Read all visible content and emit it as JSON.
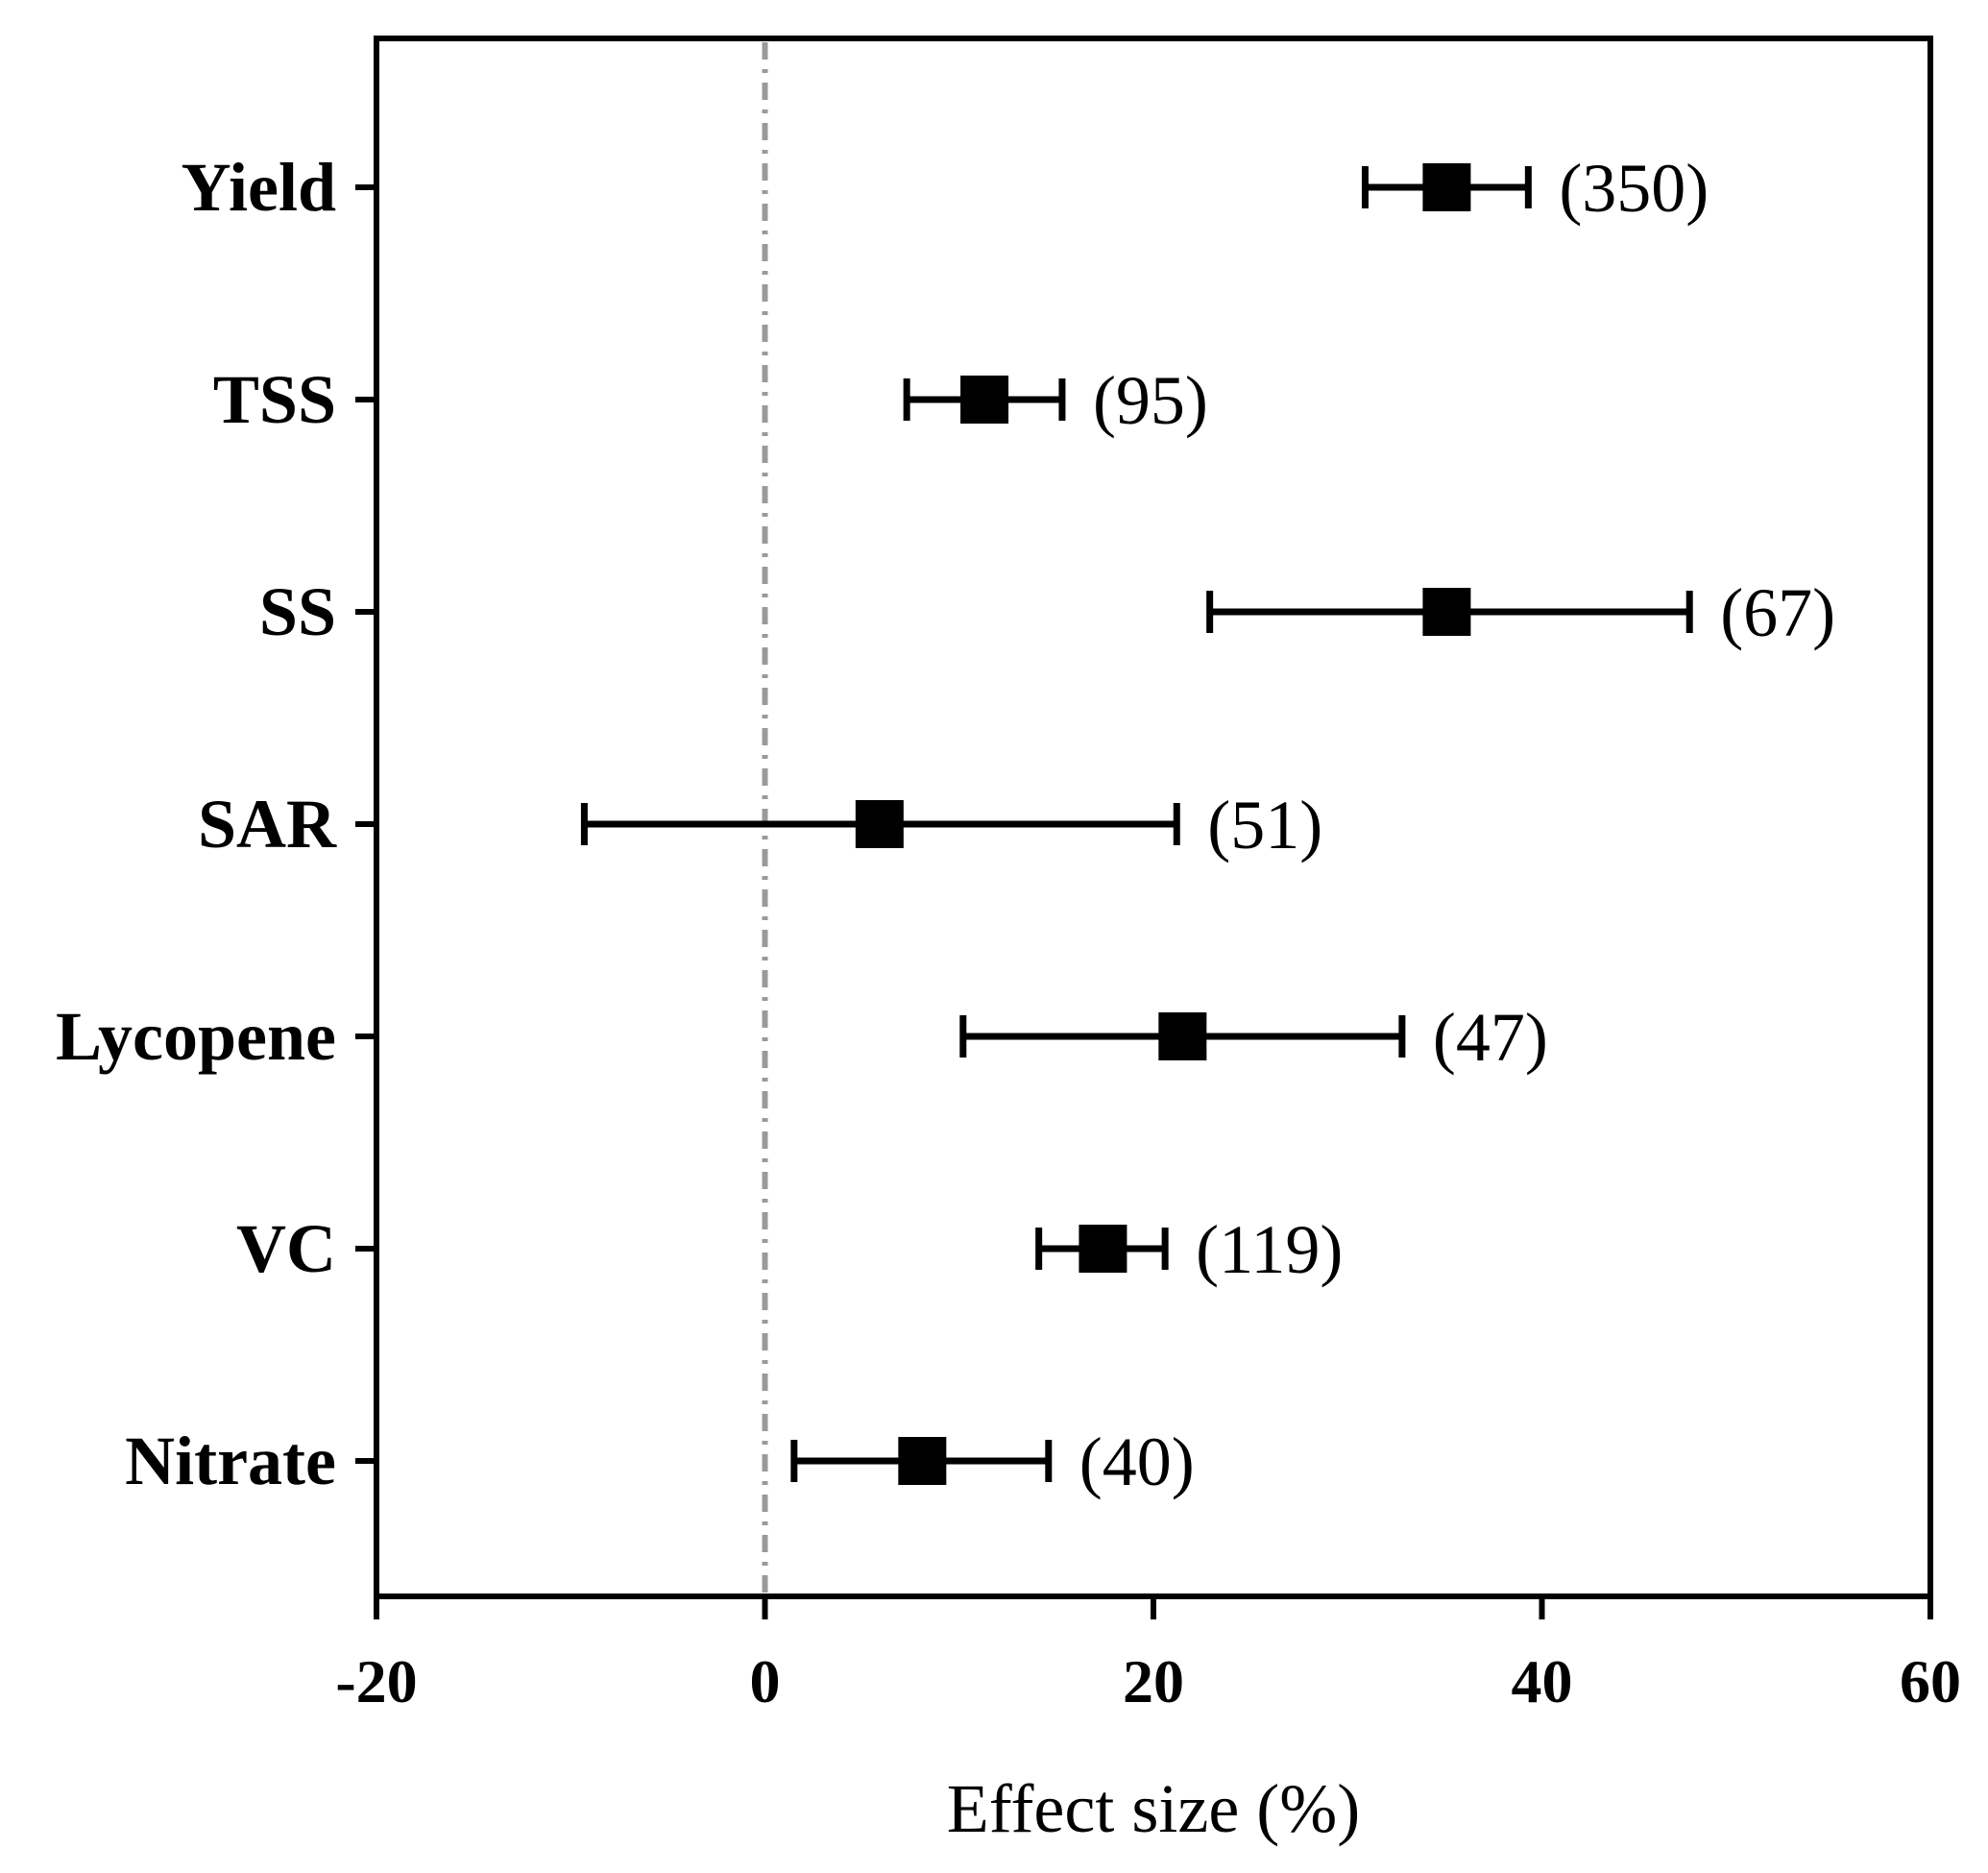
{
  "chart_data": {
    "type": "forest",
    "title": "",
    "xlabel": "Effect size (%)",
    "ylabel": "",
    "xlim": [
      -20,
      60
    ],
    "xticks": [
      -20,
      0,
      20,
      40,
      60
    ],
    "xtick_labels": [
      "-20",
      "0",
      "20",
      "40",
      "60"
    ],
    "reference_line": 0,
    "categories": [
      "Yield",
      "TSS",
      "SS",
      "SAR",
      "Lycopene",
      "VC",
      "Nitrate"
    ],
    "estimates": [
      35.1,
      11.3,
      35.1,
      5.9,
      21.5,
      17.4,
      8.1
    ],
    "ci_lower": [
      30.9,
      7.3,
      22.9,
      -9.3,
      10.2,
      14.1,
      1.5
    ],
    "ci_upper": [
      39.3,
      15.3,
      47.6,
      21.2,
      32.8,
      20.6,
      14.6
    ],
    "n_labels": [
      "(350)",
      "(95)",
      "(67)",
      "(51)",
      "(47)",
      "(119)",
      "(40)"
    ],
    "colors": {
      "marker": "#000000",
      "error_bar": "#000000",
      "axis": "#000000",
      "reference_line": "#9a9a9a"
    }
  }
}
